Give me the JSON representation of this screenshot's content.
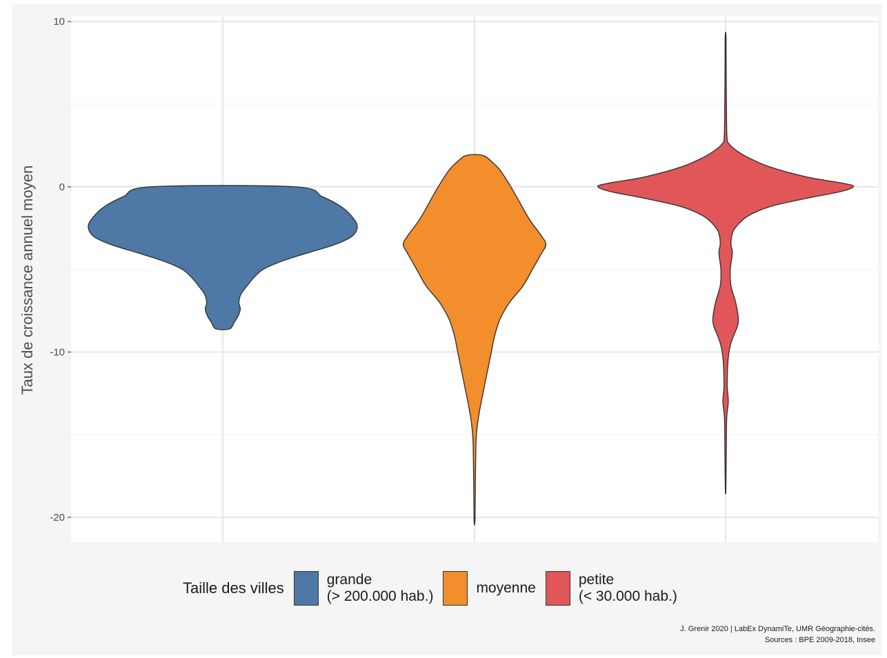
{
  "chart_data": {
    "type": "violin",
    "ylabel": "Taux de croissance annuel moyen",
    "xlabel": "",
    "ylim": [
      -21.5,
      10.3
    ],
    "yticks": [
      10,
      0,
      -10,
      -20
    ],
    "ytick_labels": [
      "10",
      "0",
      "-10",
      "-20"
    ],
    "grid": true,
    "legend": {
      "title": "Taille des villes",
      "placement": "bottom",
      "items": [
        {
          "label": "grande\n(> 200.000 hab.)",
          "color": "#4e79a7"
        },
        {
          "label": "moyenne",
          "color": "#f28e2b"
        },
        {
          "label": "petite\n(< 30.000 hab.)",
          "color": "#e15759"
        }
      ]
    },
    "series": [
      {
        "name": "grande",
        "color": "#4e79a7",
        "y_min": -8.6,
        "y_max": 0,
        "density": [
          [
            0,
            0.53
          ],
          [
            -0.6,
            0.74
          ],
          [
            -1.2,
            0.88
          ],
          [
            -1.8,
            0.96
          ],
          [
            -2.4,
            1.0
          ],
          [
            -3.0,
            0.96
          ],
          [
            -3.5,
            0.83
          ],
          [
            -4.0,
            0.63
          ],
          [
            -4.5,
            0.44
          ],
          [
            -5.0,
            0.3
          ],
          [
            -5.5,
            0.23
          ],
          [
            -6.0,
            0.18
          ],
          [
            -6.5,
            0.135
          ],
          [
            -7.0,
            0.12
          ],
          [
            -7.4,
            0.13
          ],
          [
            -7.8,
            0.115
          ],
          [
            -8.2,
            0.085
          ],
          [
            -8.6,
            0.05
          ]
        ]
      },
      {
        "name": "moyenne",
        "color": "#f28e2b",
        "y_min": -20.2,
        "y_max": 1.9,
        "density": [
          [
            1.9,
            0.06
          ],
          [
            1.5,
            0.13
          ],
          [
            1.0,
            0.19
          ],
          [
            0,
            0.27
          ],
          [
            -1.0,
            0.34
          ],
          [
            -2.0,
            0.41
          ],
          [
            -3.0,
            0.5
          ],
          [
            -3.5,
            0.53
          ],
          [
            -4.0,
            0.5
          ],
          [
            -5.0,
            0.43
          ],
          [
            -6.0,
            0.36
          ],
          [
            -7.0,
            0.26
          ],
          [
            -8.0,
            0.19
          ],
          [
            -9.0,
            0.15
          ],
          [
            -10.0,
            0.125
          ],
          [
            -11.0,
            0.1
          ],
          [
            -12.0,
            0.075
          ],
          [
            -13.0,
            0.05
          ],
          [
            -14.0,
            0.028
          ],
          [
            -15.0,
            0.014
          ],
          [
            -16.0,
            0.009
          ],
          [
            -18.0,
            0.006
          ],
          [
            -20.2,
            0.003
          ]
        ]
      },
      {
        "name": "petite",
        "color": "#e15759",
        "y_min": -18.3,
        "y_max": 9.1,
        "density": [
          [
            9.1,
            0.003
          ],
          [
            7.0,
            0.004
          ],
          [
            5.0,
            0.006
          ],
          [
            3.0,
            0.01
          ],
          [
            2.6,
            0.025
          ],
          [
            2.2,
            0.08
          ],
          [
            1.8,
            0.16
          ],
          [
            1.2,
            0.33
          ],
          [
            0.6,
            0.6
          ],
          [
            0.2,
            0.88
          ],
          [
            0,
            0.95
          ],
          [
            -0.3,
            0.85
          ],
          [
            -0.7,
            0.6
          ],
          [
            -1.2,
            0.33
          ],
          [
            -1.8,
            0.16
          ],
          [
            -2.5,
            0.07
          ],
          [
            -3.0,
            0.045
          ],
          [
            -3.5,
            0.04
          ],
          [
            -4.0,
            0.05
          ],
          [
            -5.0,
            0.035
          ],
          [
            -6.0,
            0.04
          ],
          [
            -7.0,
            0.075
          ],
          [
            -8.0,
            0.095
          ],
          [
            -8.5,
            0.085
          ],
          [
            -9.0,
            0.06
          ],
          [
            -9.6,
            0.035
          ],
          [
            -10.5,
            0.018
          ],
          [
            -12.0,
            0.012
          ],
          [
            -13.0,
            0.02
          ],
          [
            -14.0,
            0.008
          ],
          [
            -16.0,
            0.005
          ],
          [
            -18.3,
            0.002
          ]
        ]
      }
    ]
  },
  "caption": {
    "line1": "J. Grenir 2020 | LabEx DynamiTe, UMR Géographie-cités.",
    "line2": "Sources : BPE 2009-2018, Insee"
  }
}
